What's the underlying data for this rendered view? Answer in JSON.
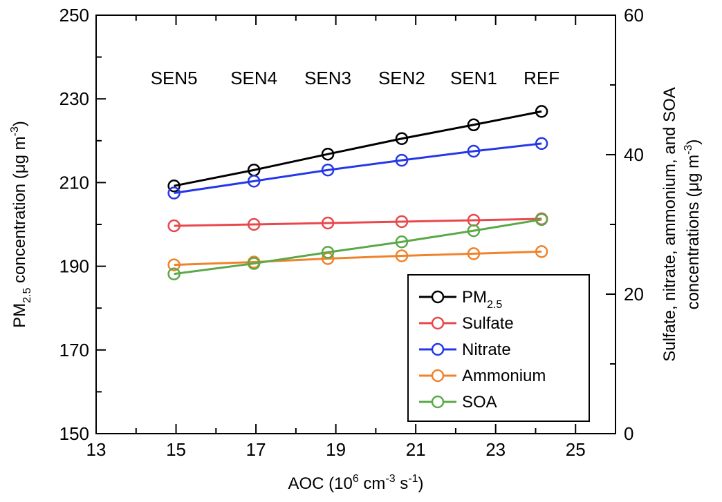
{
  "chart_data": {
    "type": "line",
    "x": [
      14.95,
      16.95,
      18.8,
      20.65,
      22.45,
      24.15
    ],
    "xlabel": "AOC (10^6 cm^-3 s^-1)",
    "xlim": [
      13,
      26
    ],
    "xticks": [
      "13",
      "15",
      "17",
      "19",
      "21",
      "23",
      "25"
    ],
    "ylabel_left": "PM2.5 concentration (μg m^-3)",
    "ylim_left": [
      150,
      250
    ],
    "yticks_left": [
      "150",
      "170",
      "190",
      "210",
      "230",
      "250"
    ],
    "ylabel_right_line1": "Sulfate, nitrate, ammonium, and SOA",
    "ylabel_right_line2": "concentrations (μg m^-3)",
    "ylim_right": [
      0,
      60
    ],
    "yticks_right": [
      "0",
      "20",
      "40",
      "60"
    ],
    "scenario_labels": [
      "SEN5",
      "SEN4",
      "SEN3",
      "SEN2",
      "SEN1",
      "REF"
    ],
    "grid": false,
    "legend_position": "bottom-right",
    "series": [
      {
        "name": "PM",
        "name_sub": "2.5",
        "axis": "left",
        "color": "#000000",
        "values": [
          209.2,
          213.0,
          216.8,
          220.5,
          223.8,
          227.0
        ]
      },
      {
        "name": "Sulfate",
        "axis": "right",
        "color": "#e8474b",
        "values": [
          29.8,
          30.0,
          30.2,
          30.4,
          30.6,
          30.8
        ]
      },
      {
        "name": "Nitrate",
        "axis": "right",
        "color": "#2437e8",
        "values": [
          34.5,
          36.2,
          37.8,
          39.2,
          40.5,
          41.6
        ]
      },
      {
        "name": "Ammonium",
        "axis": "right",
        "color": "#f0822b",
        "values": [
          24.2,
          24.6,
          25.1,
          25.5,
          25.8,
          26.1
        ]
      },
      {
        "name": "SOA",
        "axis": "right",
        "color": "#5aa847",
        "values": [
          22.9,
          24.4,
          26.0,
          27.5,
          29.1,
          30.7
        ]
      }
    ]
  }
}
